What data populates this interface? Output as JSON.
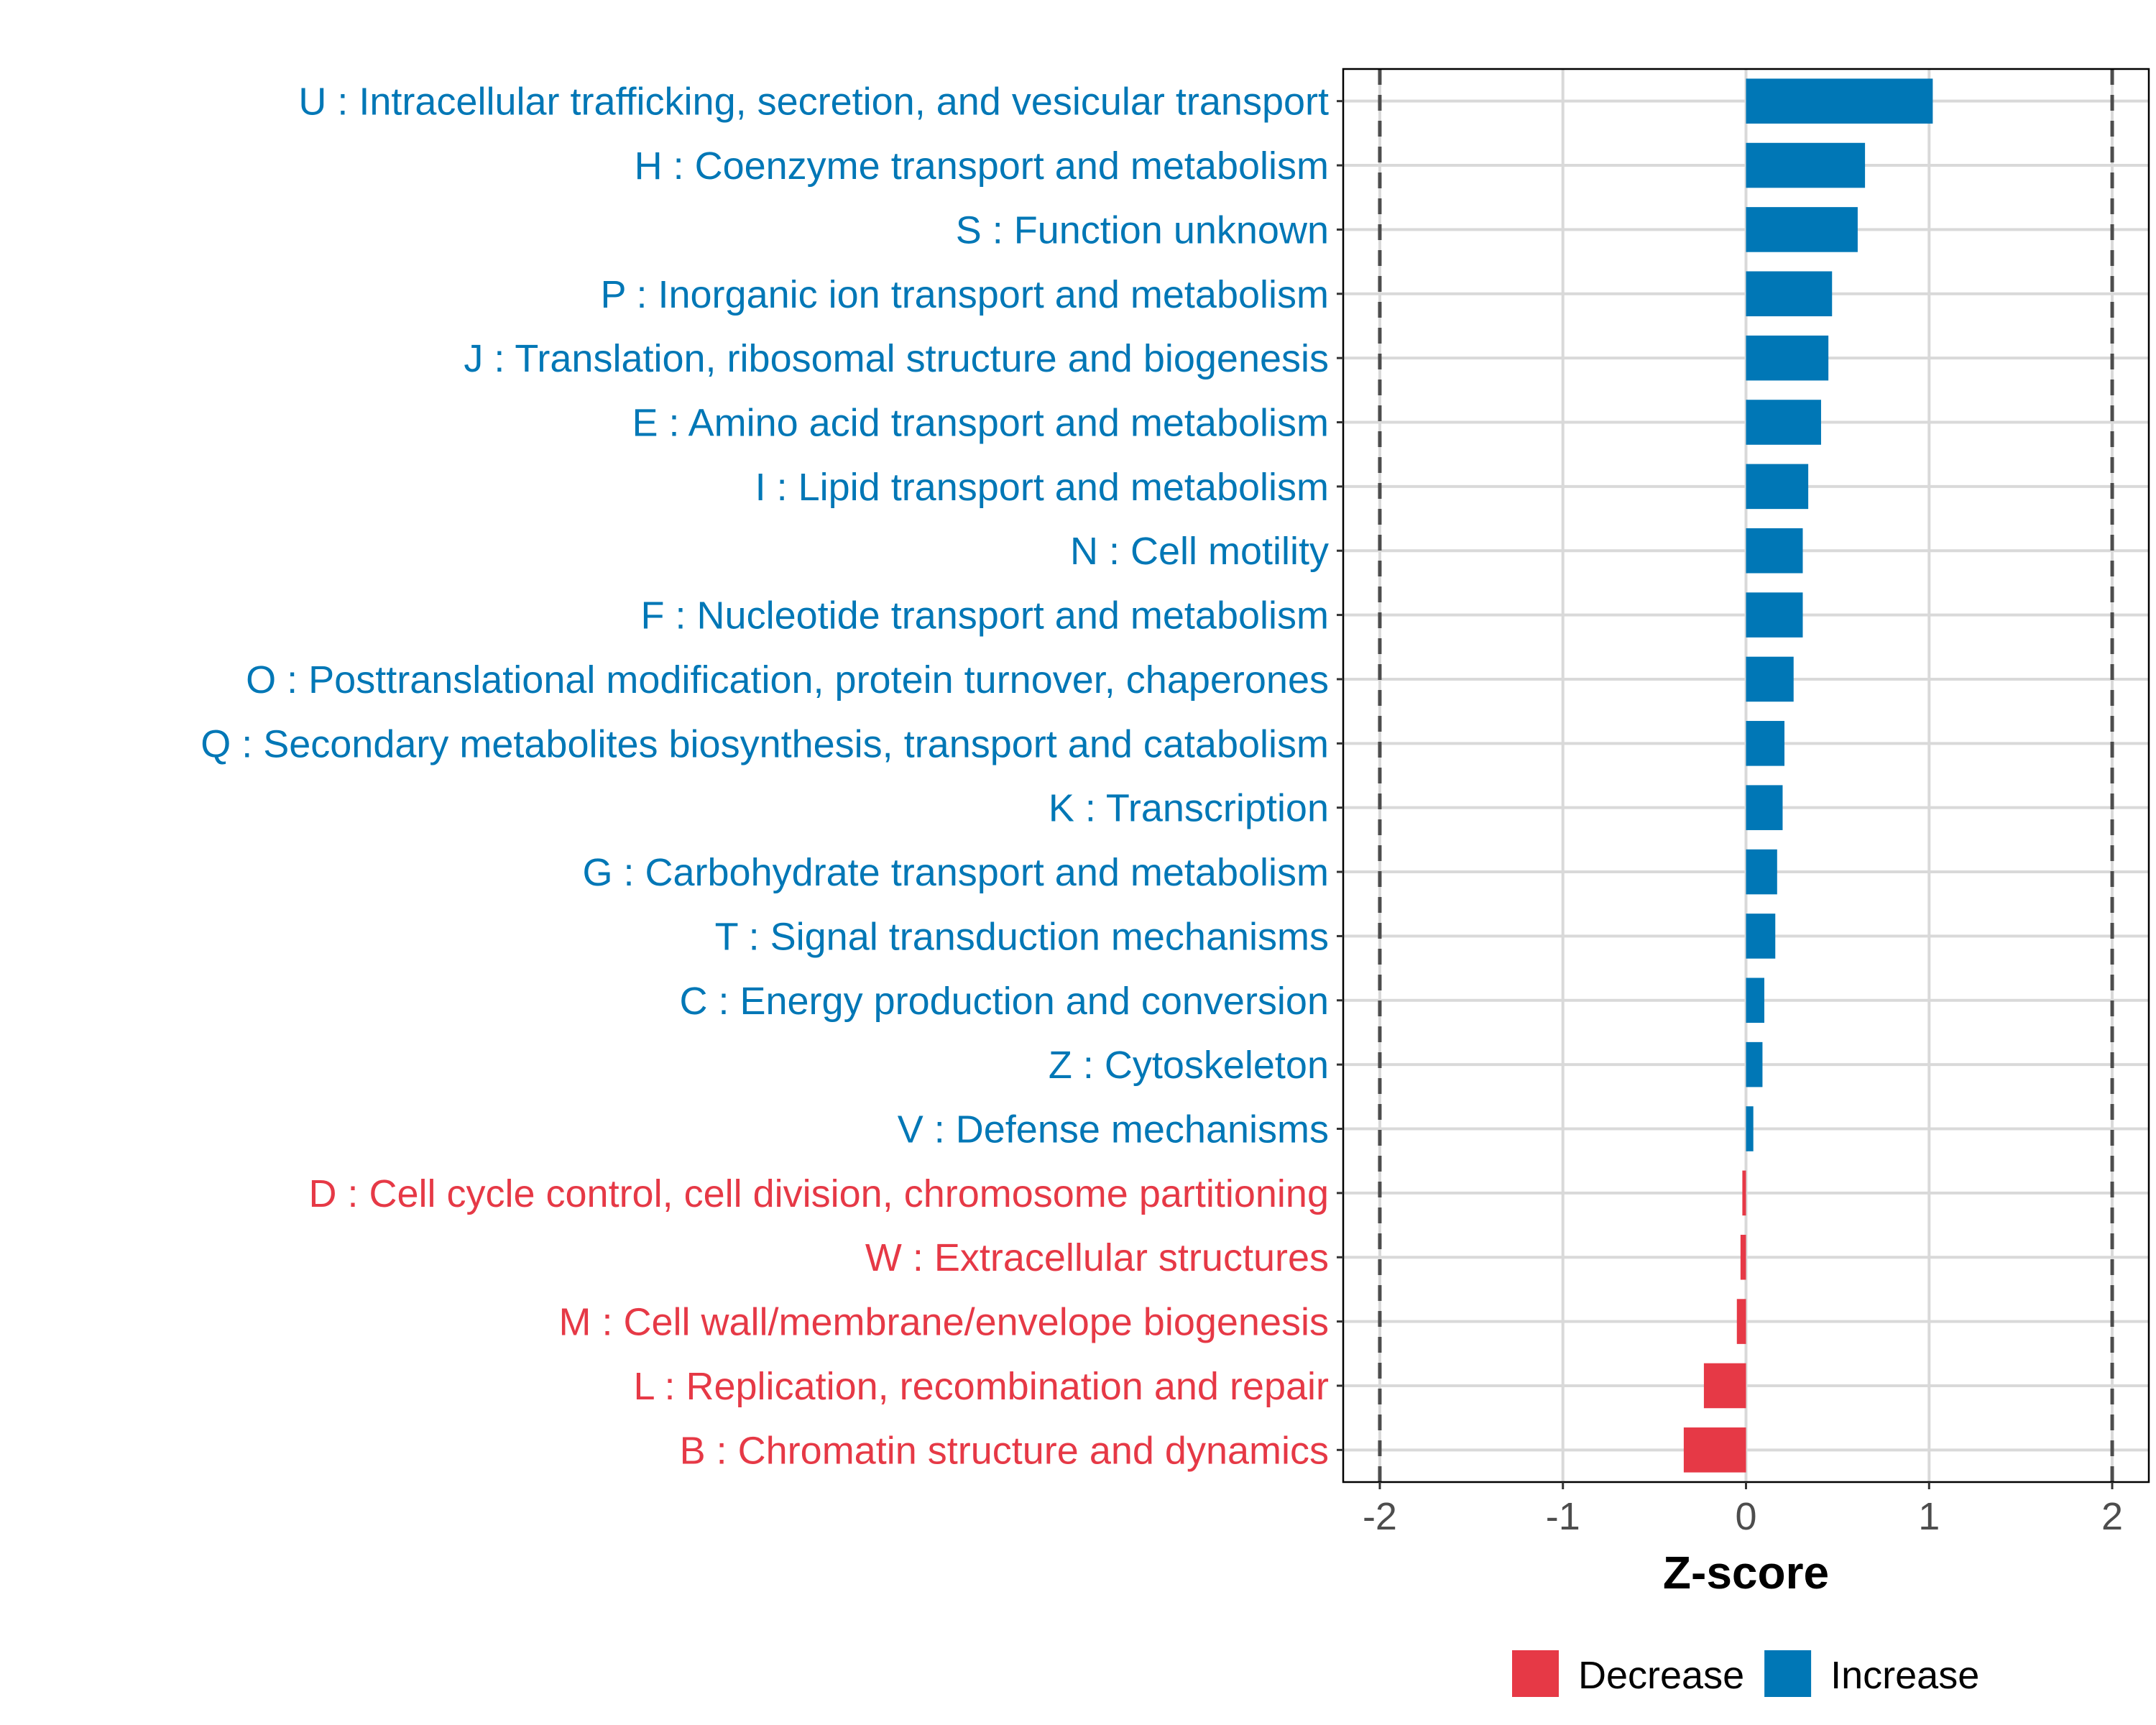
{
  "chart_data": {
    "type": "bar",
    "orientation": "horizontal",
    "xlabel": "Z-score",
    "ylabel": "",
    "xlim": [
      -2.2,
      2.2
    ],
    "xticks": [
      -2,
      -1,
      0,
      1,
      2
    ],
    "xtick_labels": [
      "-2",
      "-1",
      "0",
      "1",
      "2"
    ],
    "reference_lines": [
      -2,
      2
    ],
    "grid": true,
    "legend": {
      "placement": "bottom",
      "entries": [
        {
          "label": "Decrease",
          "color": "#E63946"
        },
        {
          "label": "Increase",
          "color": "#0077B6"
        }
      ]
    },
    "categories": [
      "U : Intracellular trafficking, secretion, and vesicular transport",
      "H : Coenzyme transport and metabolism",
      "S : Function unknown",
      "P : Inorganic ion transport and metabolism",
      "J : Translation, ribosomal structure and biogenesis",
      "E : Amino acid transport and metabolism",
      "I : Lipid transport and metabolism",
      "N : Cell motility",
      "F : Nucleotide transport and metabolism",
      "O : Posttranslational modification, protein turnover, chaperones",
      "Q : Secondary metabolites biosynthesis, transport and catabolism",
      "K : Transcription",
      "G : Carbohydrate transport and metabolism",
      "T : Signal transduction mechanisms",
      "C : Energy production and conversion",
      "Z : Cytoskeleton",
      "V : Defense mechanisms",
      "D : Cell cycle control, cell division, chromosome partitioning",
      "W : Extracellular structures",
      "M : Cell wall/membrane/envelope biogenesis",
      "L : Replication, recombination and repair",
      "B : Chromatin structure and dynamics"
    ],
    "values": [
      1.02,
      0.65,
      0.61,
      0.47,
      0.45,
      0.41,
      0.34,
      0.31,
      0.31,
      0.26,
      0.21,
      0.2,
      0.17,
      0.16,
      0.1,
      0.09,
      0.04,
      -0.02,
      -0.03,
      -0.05,
      -0.23,
      -0.34
    ],
    "colors": {
      "increase": "#0077B6",
      "decrease": "#E63946"
    }
  }
}
